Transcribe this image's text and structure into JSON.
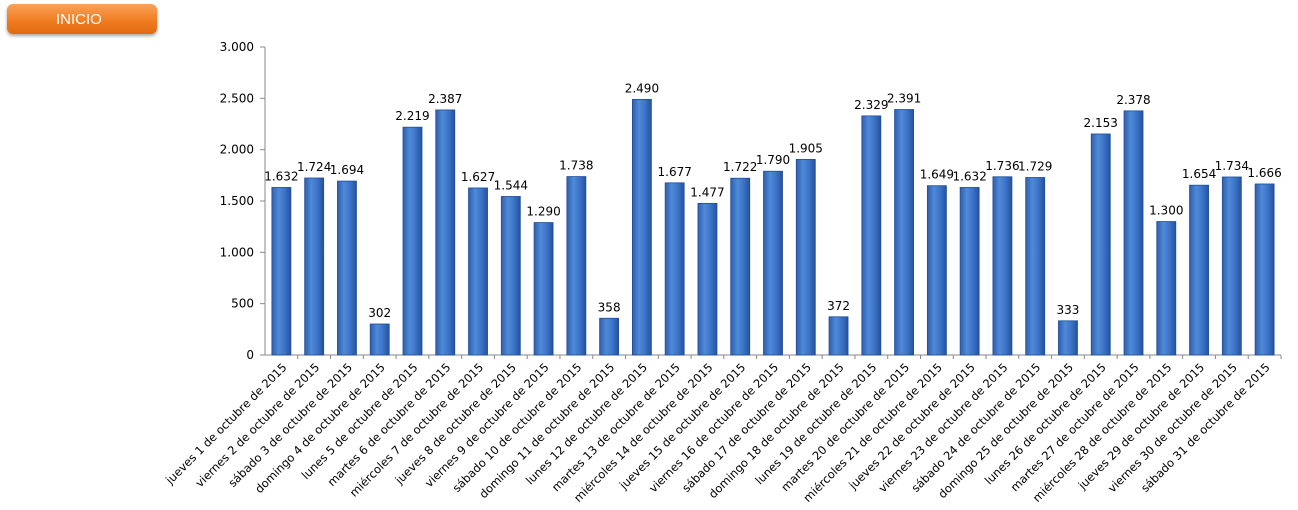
{
  "button": {
    "label": "INICIO",
    "color": "#f07d22"
  },
  "chart_data": {
    "type": "bar",
    "categories": [
      "jueves 1 de octubre de 2015",
      "viernes 2 de octubre de 2015",
      "sábado 3 de octubre de 2015",
      "domingo 4 de octubre de 2015",
      "lunes 5 de octubre de 2015",
      "martes 6 de octubre de 2015",
      "miércoles 7 de octubre de 2015",
      "jueves 8 de octubre de 2015",
      "viernes 9 de octubre de 2015",
      "sábado 10 de octubre de 2015",
      "domingo 11 de octubre de 2015",
      "lunes 12 de octubre de 2015",
      "martes 13 de octubre de 2015",
      "miércoles 14 de octubre de 2015",
      "jueves 15 de octubre de 2015",
      "viernes 16 de octubre de 2015",
      "sábado 17 de octubre de 2015",
      "domingo 18 de octubre de 2015",
      "lunes 19 de octubre de 2015",
      "martes 20 de octubre de 2015",
      "miércoles 21 de octubre de 2015",
      "jueves 22 de octubre de 2015",
      "viernes 23 de octubre de 2015",
      "sábado 24 de octubre de 2015",
      "domingo 25 de octubre de 2015",
      "lunes 26 de octubre de 2015",
      "martes 27 de octubre de 2015",
      "miércoles 28 de octubre de 2015",
      "jueves 29 de octubre de 2015",
      "viernes 30 de octubre de 2015",
      "sábado 31 de octubre de 2015"
    ],
    "values": [
      1632,
      1724,
      1694,
      302,
      2219,
      2387,
      1627,
      1544,
      1290,
      1738,
      358,
      2490,
      1677,
      1477,
      1722,
      1790,
      1905,
      372,
      2329,
      2391,
      1649,
      1632,
      1736,
      1729,
      333,
      2153,
      2378,
      1300,
      1654,
      1734,
      1666
    ],
    "value_labels": [
      "1.632",
      "1.724",
      "1.694",
      "302",
      "2.219",
      "2.387",
      "1.627",
      "1.544",
      "1.290",
      "1.738",
      "358",
      "2.490",
      "1.677",
      "1.477",
      "1.722",
      "1.790",
      "1.905",
      "372",
      "2.329",
      "2.391",
      "1.649",
      "1.632",
      "1.736",
      "1.729",
      "333",
      "2.153",
      "2.378",
      "1.300",
      "1.654",
      "1.734",
      "1.666"
    ],
    "yticks": [
      0,
      500,
      1000,
      1500,
      2000,
      2500,
      3000
    ],
    "ytick_labels": [
      "0",
      "500",
      "1.000",
      "1.500",
      "2.000",
      "2.500",
      "3.000"
    ],
    "ylim": [
      0,
      3000
    ],
    "grid": false,
    "legend": "none",
    "bar_color": "#3a72c8",
    "bar_edge_color": "#1f4e9a"
  }
}
